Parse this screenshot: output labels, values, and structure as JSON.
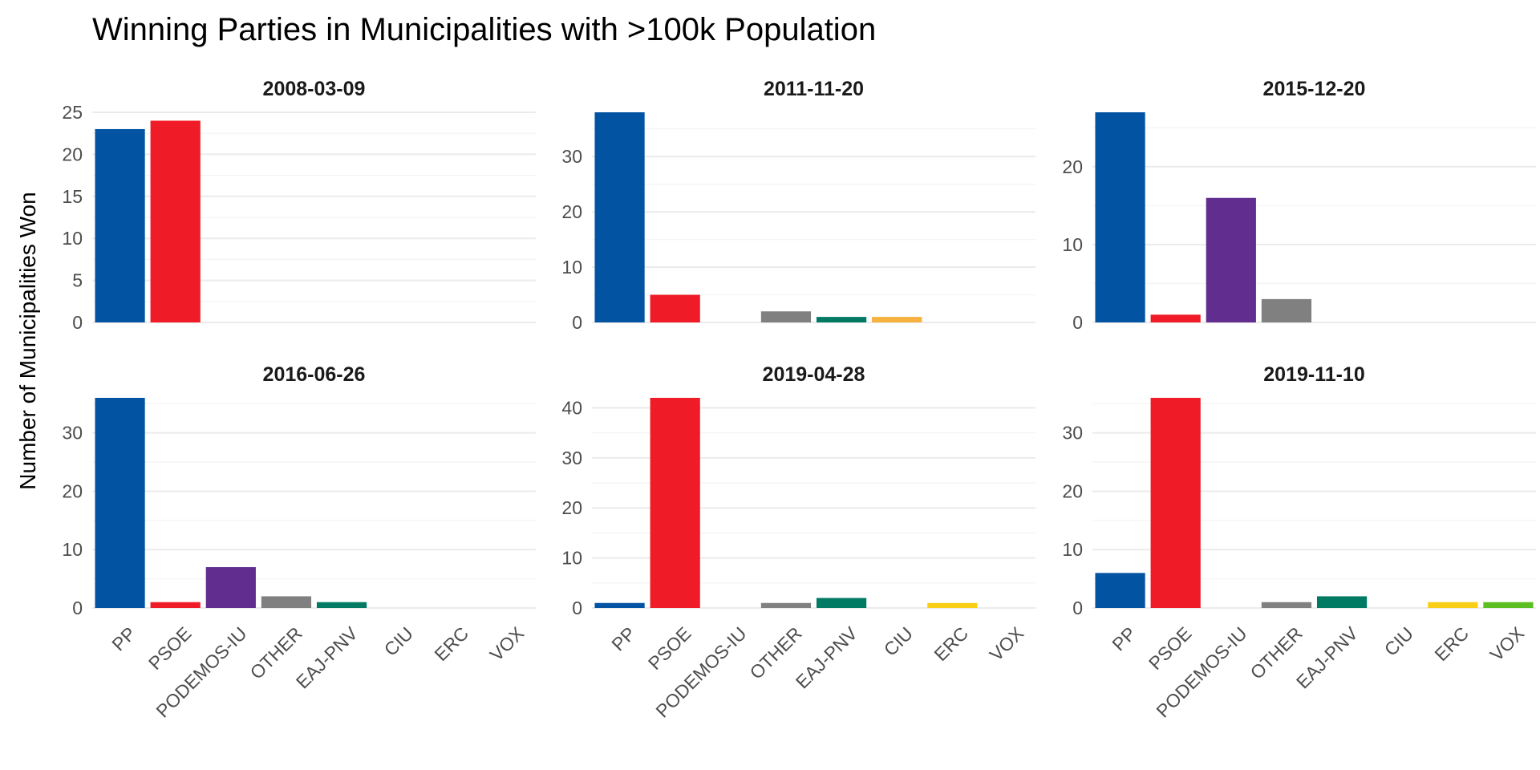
{
  "chart_data": {
    "type": "bar",
    "title": "Winning Parties in Municipalities with >100k Population",
    "xlabel": "",
    "ylabel": "Number of Municipalities Won",
    "categories": [
      "PP",
      "PSOE",
      "PODEMOS-IU",
      "OTHER",
      "EAJ-PNV",
      "CIU",
      "ERC",
      "VOX"
    ],
    "colors": {
      "PP": "#0254A3",
      "PSOE": "#EF1C27",
      "PODEMOS-IU": "#612D8F",
      "OTHER": "#808080",
      "EAJ-PNV": "#007A63",
      "CIU": "#1F4E9B",
      "ERC": "#F9CE17",
      "VOX": "#5BBF21"
    },
    "grid": true,
    "legend": "none",
    "panels": [
      {
        "label": "2008-03-09",
        "ylim": [
          0,
          25
        ],
        "yticks": [
          0,
          5,
          10,
          15,
          20,
          25
        ],
        "values": [
          23,
          24,
          0,
          0,
          0,
          0,
          0,
          0
        ],
        "show_x_labels": false
      },
      {
        "label": "2011-11-20",
        "ylim": [
          0,
          38
        ],
        "yticks": [
          0,
          10,
          20,
          30
        ],
        "values": [
          38,
          5,
          0,
          2,
          1,
          1,
          0,
          0
        ],
        "bar_colors": {
          "CIU": "#F6B13E"
        },
        "show_x_labels": false
      },
      {
        "label": "2015-12-20",
        "ylim": [
          0,
          27
        ],
        "yticks": [
          0,
          10,
          20
        ],
        "values": [
          27,
          1,
          16,
          3,
          0,
          0,
          0,
          0
        ],
        "show_x_labels": false
      },
      {
        "label": "2016-06-26",
        "ylim": [
          0,
          36
        ],
        "yticks": [
          0,
          10,
          20,
          30
        ],
        "values": [
          36,
          1,
          7,
          2,
          1,
          0,
          0,
          0
        ],
        "show_x_labels": true
      },
      {
        "label": "2019-04-28",
        "ylim": [
          0,
          42
        ],
        "yticks": [
          0,
          10,
          20,
          30,
          40
        ],
        "values": [
          1,
          42,
          0,
          1,
          2,
          0,
          1,
          0
        ],
        "show_x_labels": true
      },
      {
        "label": "2019-11-10",
        "ylim": [
          0,
          36
        ],
        "yticks": [
          0,
          10,
          20,
          30
        ],
        "values": [
          6,
          36,
          0,
          1,
          2,
          0,
          1,
          1
        ],
        "show_x_labels": true
      }
    ]
  }
}
